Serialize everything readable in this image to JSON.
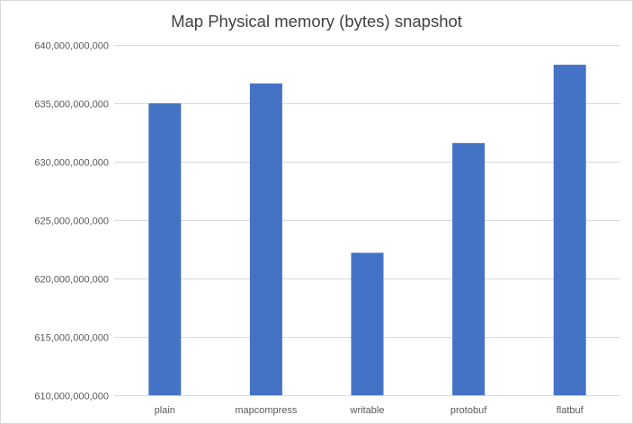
{
  "chart_data": {
    "type": "bar",
    "title": "Map Physical memory (bytes) snapshot",
    "xlabel": "",
    "ylabel": "",
    "categories": [
      "plain",
      "mapcompress",
      "writable",
      "protobuf",
      "flatbuf"
    ],
    "series": [
      {
        "values": [
          635000000000,
          636700000000,
          622200000000,
          631600000000,
          638300000000
        ]
      }
    ],
    "ylim": [
      610000000000,
      640000000000
    ],
    "yticks": [
      610000000000,
      615000000000,
      620000000000,
      625000000000,
      630000000000,
      635000000000,
      640000000000
    ],
    "ytick_labels": [
      "610,000,000,000",
      "615,000,000,000",
      "620,000,000,000",
      "625,000,000,000",
      "630,000,000,000",
      "635,000,000,000",
      "640,000,000,000"
    ],
    "grid": true,
    "legend": "none",
    "bar_color": "#4472c4",
    "grid_color": "#d9d9d9"
  }
}
